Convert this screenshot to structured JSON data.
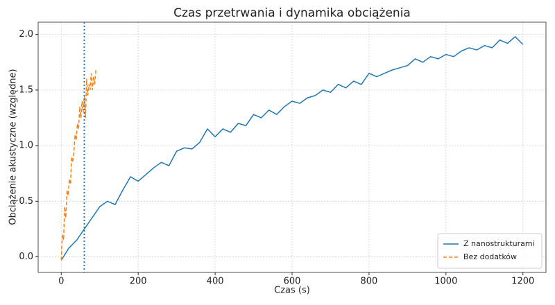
{
  "chart_data": {
    "type": "line",
    "title": "Czas przetrwania i dynamika obciążenia",
    "x_label": "Czas (s)",
    "y_label": "Obciążenie akustyczne (względne)",
    "xlim": [
      -60,
      1260
    ],
    "ylim": [
      -0.14,
      2.11
    ],
    "xticks": [
      0,
      200,
      400,
      600,
      800,
      1000,
      1200
    ],
    "yticks": [
      {
        "value": 0,
        "label": "0.0"
      },
      0.5,
      {
        "value": 1,
        "label": "1.0"
      },
      1.5,
      {
        "value": 2,
        "label": "2.0"
      }
    ],
    "grid": true,
    "legend": "lower right",
    "vline": 60,
    "vline_color": "#1f77b4",
    "series": [
      {
        "name": "Z nanostrukturami",
        "color": "#1f77b4",
        "dash": false,
        "x": [
          0,
          20,
          40,
          60,
          80,
          100,
          120,
          140,
          160,
          180,
          200,
          220,
          240,
          260,
          280,
          300,
          320,
          340,
          360,
          380,
          400,
          420,
          440,
          460,
          480,
          500,
          520,
          540,
          560,
          580,
          600,
          620,
          640,
          660,
          680,
          700,
          720,
          740,
          760,
          780,
          800,
          820,
          840,
          860,
          880,
          900,
          920,
          940,
          960,
          980,
          1000,
          1020,
          1040,
          1060,
          1080,
          1100,
          1120,
          1140,
          1160,
          1180,
          1200
        ],
        "values": [
          -0.03,
          0.08,
          0.15,
          0.25,
          0.35,
          0.45,
          0.5,
          0.47,
          0.6,
          0.72,
          0.68,
          0.74,
          0.8,
          0.85,
          0.82,
          0.95,
          0.98,
          0.97,
          1.03,
          1.15,
          1.08,
          1.15,
          1.12,
          1.2,
          1.18,
          1.28,
          1.25,
          1.32,
          1.28,
          1.35,
          1.4,
          1.38,
          1.43,
          1.45,
          1.5,
          1.48,
          1.55,
          1.52,
          1.58,
          1.55,
          1.65,
          1.62,
          1.65,
          1.68,
          1.7,
          1.72,
          1.78,
          1.75,
          1.8,
          1.78,
          1.82,
          1.8,
          1.85,
          1.88,
          1.86,
          1.9,
          1.88,
          1.95,
          1.92,
          1.98,
          1.91
        ]
      },
      {
        "name": "Bez dodatków",
        "color": "#ff7f0e",
        "dash": true,
        "x": [
          0,
          3,
          6,
          9,
          12,
          15,
          18,
          21,
          24,
          27,
          30,
          33,
          36,
          39,
          42,
          45,
          48,
          51,
          54,
          57,
          60,
          63,
          66,
          69,
          72,
          75,
          78,
          81,
          84,
          87,
          90
        ],
        "values": [
          -0.03,
          0.2,
          0.15,
          0.45,
          0.35,
          0.6,
          0.55,
          0.7,
          0.65,
          0.9,
          0.85,
          0.95,
          1.1,
          1.05,
          1.2,
          1.15,
          1.35,
          1.25,
          1.4,
          1.3,
          1.45,
          1.25,
          1.6,
          1.45,
          1.55,
          1.5,
          1.65,
          1.5,
          1.62,
          1.55,
          1.68
        ]
      }
    ]
  }
}
